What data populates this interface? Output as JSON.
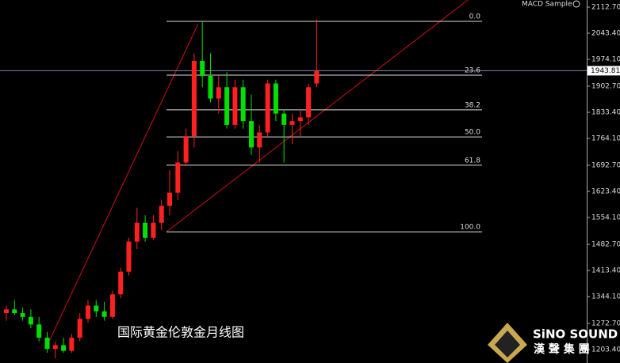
{
  "chart_data": {
    "type": "candlestick",
    "title": "国际黄金伦敦金月线图",
    "indicator": "MACD Sample",
    "up_color": "#ff2020",
    "down_color": "#00e000",
    "open": [
      1300,
      1310,
      1300,
      1290,
      1270,
      1235,
      1205,
      1215,
      1200,
      1235,
      1285,
      1320,
      1305,
      1290,
      1350,
      1410,
      1490,
      1540,
      1500,
      1540,
      1585,
      1620,
      1700,
      1770,
      1970,
      1930,
      1870,
      1900,
      1800,
      1900,
      1810,
      1740,
      1780,
      1910,
      1830,
      1800,
      1810,
      1820,
      1910
    ],
    "high": [
      1320,
      1335,
      1315,
      1310,
      1290,
      1250,
      1225,
      1235,
      1245,
      1300,
      1335,
      1335,
      1330,
      1360,
      1420,
      1500,
      1580,
      1560,
      1560,
      1600,
      1680,
      1730,
      1790,
      1990,
      2075,
      1990,
      1930,
      1940,
      1920,
      1920,
      1880,
      1800,
      1920,
      1920,
      1840,
      1830,
      1840,
      1910,
      2080
    ],
    "low": [
      1280,
      1295,
      1280,
      1260,
      1225,
      1195,
      1180,
      1195,
      1195,
      1225,
      1275,
      1290,
      1280,
      1285,
      1340,
      1400,
      1470,
      1490,
      1495,
      1520,
      1560,
      1600,
      1690,
      1740,
      1900,
      1860,
      1830,
      1790,
      1790,
      1790,
      1720,
      1700,
      1770,
      1810,
      1700,
      1750,
      1770,
      1800,
      1900
    ],
    "close": [
      1310,
      1300,
      1290,
      1270,
      1235,
      1205,
      1215,
      1200,
      1235,
      1285,
      1320,
      1305,
      1290,
      1350,
      1410,
      1490,
      1540,
      1500,
      1540,
      1585,
      1620,
      1700,
      1770,
      1970,
      1930,
      1870,
      1900,
      1800,
      1900,
      1810,
      1740,
      1780,
      1910,
      1830,
      1800,
      1810,
      1820,
      1900,
      1944
    ],
    "current_price": 1943.81,
    "fib_levels": [
      {
        "label": "0.0",
        "price": 2075
      },
      {
        "label": "23.6",
        "price": 1932
      },
      {
        "label": "38.2",
        "price": 1840
      },
      {
        "label": "50.0",
        "price": 1768
      },
      {
        "label": "61.8",
        "price": 1693
      },
      {
        "label": "100.0",
        "price": 1516
      }
    ],
    "ylim": [
      1167.7,
      2131.6
    ],
    "yticks": [
      {
        "value": 2112.7,
        "label": "2112.70"
      },
      {
        "value": 2043.4,
        "label": "2043.40"
      },
      {
        "value": 1974.1,
        "label": "1974.10"
      },
      {
        "value": 1902.7,
        "label": "1902.70"
      },
      {
        "value": 1833.4,
        "label": "1833.40"
      },
      {
        "value": 1764.1,
        "label": "1764.10"
      },
      {
        "value": 1692.7,
        "label": "1692.70"
      },
      {
        "value": 1623.4,
        "label": "1623.40"
      },
      {
        "value": 1554.1,
        "label": "1554.10"
      },
      {
        "value": 1482.7,
        "label": "1482.70"
      },
      {
        "value": 1413.4,
        "label": "1413.40"
      },
      {
        "value": 1344.1,
        "label": "1344.10"
      },
      {
        "value": 1272.7,
        "label": "1272.70"
      },
      {
        "value": 1203.4,
        "label": "1203.40"
      }
    ]
  },
  "logo": {
    "name": "SiNO SOUND",
    "subtitle": "漢 聲 集 團"
  }
}
